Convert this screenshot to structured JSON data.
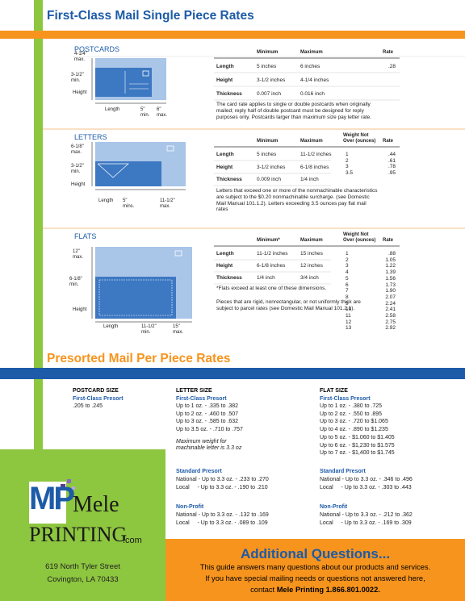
{
  "header": {
    "title": "First-Class Mail Single Piece Rates"
  },
  "postcards": {
    "label": "POSTCARDS",
    "diagram": [
      "4-1/4\"\nmax.",
      "3-1/2\"\nmin.",
      "Height",
      "Length",
      "5\"\nmin.",
      "6\"\nmax."
    ],
    "table": {
      "headers": [
        "Minimum",
        "Maximum",
        "Rate"
      ],
      "rows": [
        [
          "Length",
          "5 inches",
          "6 inches"
        ],
        [
          "Height",
          "3-1/2 inches",
          "4-1/4 inches"
        ],
        [
          "Thickness",
          "0.007 inch",
          "0.016 inch"
        ]
      ],
      "rates": [
        ".28"
      ]
    },
    "notes": [
      "The card rate applies to single or double postcards when originally mailed; reply half of double postcard must be designed for reply purposes only. Postcards larger than maximum size pay letter rate."
    ]
  },
  "letters": {
    "label": "LETTERS",
    "diagram": [
      "6-1/8\"\nmax.",
      "3-1/2\"\nmin.",
      "Height",
      "Length",
      "5\"\nmins.",
      "11-1/2\"\nmax."
    ],
    "table": {
      "headers": [
        "Minimum",
        "Maximum",
        "Weight Not\nOver (ounces)",
        "Rate"
      ],
      "rows": [
        [
          "Length",
          "5 inches",
          "11-1/2 inches"
        ],
        [
          "Height",
          "3-1/2 inches",
          "6-1/8 inches"
        ],
        [
          "Thickness",
          "0.009 inch",
          "1/4 inch"
        ]
      ],
      "weights": [
        "1",
        "2",
        "3",
        "3.5"
      ],
      "rates": [
        ".44",
        ".61",
        ".78",
        ".95"
      ]
    },
    "notes": [
      "Letters that exceed one or more of the nonmachinable characteristics are subject to the $0.20 nonmachinable surcharge. (see Domestic Mail Manual 101.1.2). Letters exceeding 3.5 ounces pay flat mail rates"
    ]
  },
  "flats": {
    "label": "FLATS",
    "diagram": [
      "12\"\nmax.",
      "6-1/8\"\nmin.",
      "Height",
      "Length",
      "11-1/2\"\nmin.",
      "15\"\nmax."
    ],
    "table": {
      "headers": [
        "Minimum*",
        "Maximum",
        "Weight Not\nOver (ounces)",
        "Rate"
      ],
      "rows": [
        [
          "Length",
          "11-1/2 inches",
          "15 inches"
        ],
        [
          "Height",
          "6-1/8 inches",
          "12 inches"
        ],
        [
          "Thickness",
          "1/4 inch",
          "3/4 inch"
        ]
      ],
      "weights": [
        "1",
        "2",
        "3",
        "4",
        "5",
        "6",
        "7",
        "8",
        "9",
        "10",
        "11",
        "12",
        "13"
      ],
      "rates": [
        ".88",
        "1.05",
        "1.22",
        "1.39",
        "1.56",
        "1.73",
        "1.90",
        "2.07",
        "2.24",
        "2.41",
        "2.58",
        "2.75",
        "2.92"
      ]
    },
    "notes": [
      "*Flats exceed at least one of these dimensions.",
      "Pieces that are rigid, nonrectangular, or not uniformly thick are subject to parcel rates (see Domestic Mail Manual 101.2.1)."
    ]
  },
  "presort": {
    "title": "Presorted Mail Per Piece Rates",
    "postcard": {
      "heading": "POSTCARD SIZE",
      "first_class": {
        "title": "First-Class Presort",
        "lines": [
          ".205 to .245"
        ]
      }
    },
    "letter": {
      "heading": "LETTER SIZE",
      "first_class": {
        "title": "First-Class Presort",
        "lines": [
          "Up to 1 oz. - .335 to .382",
          "Up to 2 oz. - .460 to .507",
          "Up to 3 oz. - .585 to .632",
          "Up to 3.5 oz. - .710 to .757"
        ]
      },
      "note": "Maximum weight for\nmachinable letter is 3.3 oz",
      "standard": {
        "title": "Standard Presort",
        "lines": [
          "National - Up to 3.3 oz. - .233 to .270",
          "Local     - Up to 3.3 oz. - .190 to .210"
        ]
      },
      "nonprofit": {
        "title": "Non-Profit",
        "lines": [
          "National - Up to 3.3 oz. - .132 to .169",
          "Local     - Up to 3.3 oz. - .089 to .109"
        ]
      }
    },
    "flat": {
      "heading": "FLAT SIZE",
      "first_class": {
        "title": "First-Class Presort",
        "lines": [
          "Up to 1 oz. - .380 to .725",
          "Up to 2 oz. - .550 to .895",
          "Up to 3 oz. - .720 to $1.065",
          "Up to 4 oz. - .890 to $1.235",
          "Up to 5 oz. - $1.060 to $1.405",
          "Up to 6 oz. - $1,230 to $1.575",
          "Up to 7 oz. - $1,400 to $1.745"
        ]
      },
      "standard": {
        "title": "Standard Presort",
        "lines": [
          "National - Up to 3.3 oz. - .346 to .496",
          "Local     - Up to 3.3 oz. - .303 to .443"
        ]
      },
      "nonprofit": {
        "title": "Non-Profit",
        "lines": [
          "National - Up to 3.3 oz. - .212 to .362",
          "Local     - Up to 3.3 oz. - .169 to .309"
        ]
      }
    }
  },
  "footer": {
    "logo": {
      "mark": "MP",
      "name": "Mele",
      "printing": "PRINTING",
      "domain": ".com"
    },
    "address": [
      "619 North Tyler Street",
      "Covington, LA 70433"
    ],
    "questions": {
      "title": "Additional Questions...",
      "lines": [
        "This guide answers many questions about our products and services.",
        "If you have special mailing needs or questions not answered here,"
      ],
      "contact_prefix": "contact ",
      "contact": "Mele Printing 1.866.801.0022."
    }
  }
}
